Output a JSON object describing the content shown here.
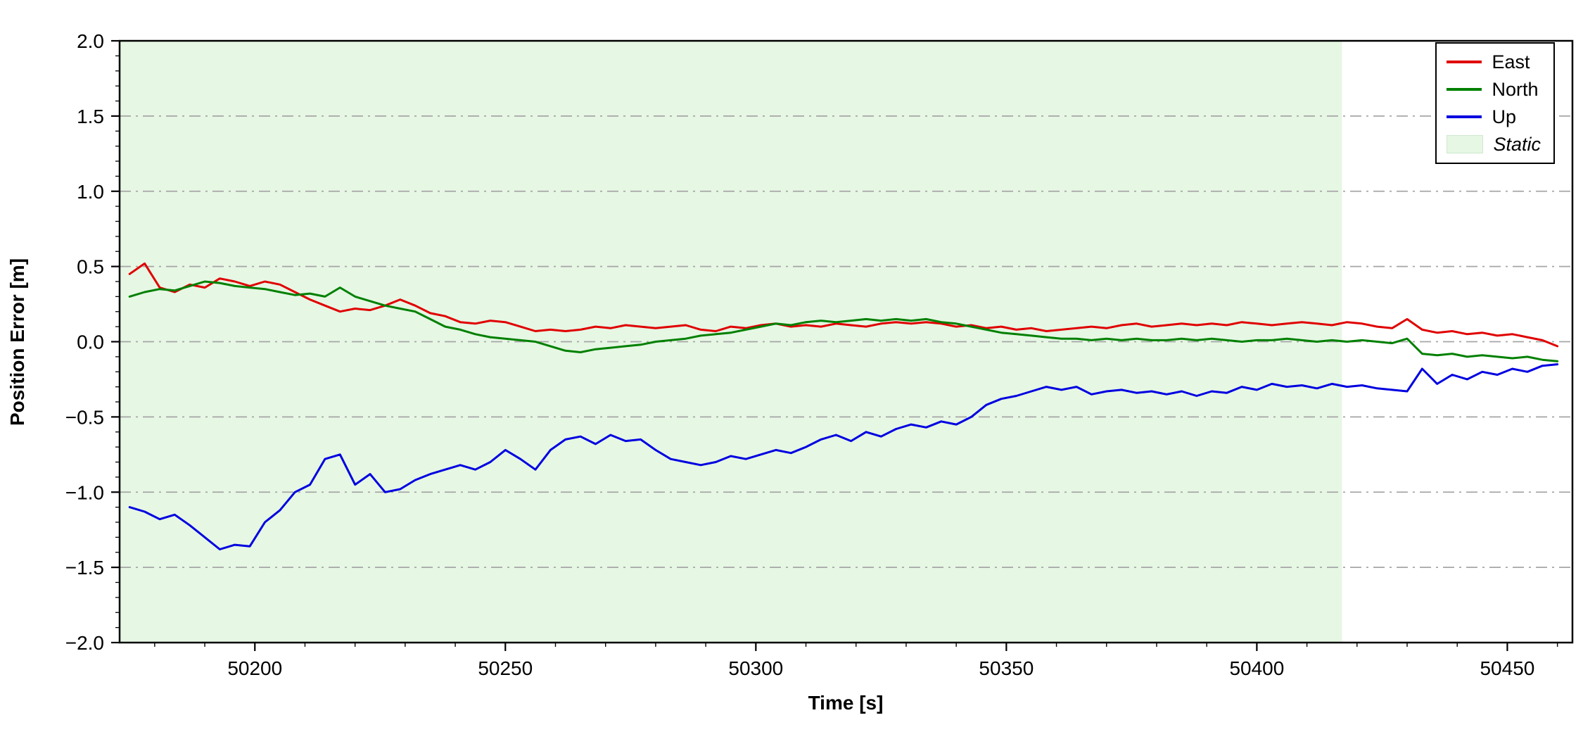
{
  "figure": {
    "title": ""
  },
  "chart_data": {
    "type": "line",
    "title": "",
    "xlabel": "Time [s]",
    "ylabel": "Position Error [m]",
    "xlim": [
      50173,
      50463
    ],
    "ylim": [
      -2.0,
      2.0
    ],
    "xticks": [
      50200,
      50250,
      50300,
      50350,
      50400,
      50450
    ],
    "yticks": [
      -2.0,
      -1.5,
      -1.0,
      -0.5,
      0.0,
      0.5,
      1.0,
      1.5,
      2.0
    ],
    "ytick_labels": [
      "−2.0",
      "−1.5",
      "−1.0",
      "−0.5",
      "0.0",
      "0.5",
      "1.0",
      "1.5",
      "2.0"
    ],
    "grid": {
      "axis": "y",
      "style": "dashdot",
      "color": "#a6a6a6"
    },
    "legend_position": "upper right",
    "static_region": {
      "label": "Static",
      "x_start": 50173,
      "x_end": 50417,
      "color": "#e6f7e4"
    },
    "x": [
      50175,
      50178,
      50181,
      50184,
      50187,
      50190,
      50193,
      50196,
      50199,
      50202,
      50205,
      50208,
      50211,
      50214,
      50217,
      50220,
      50223,
      50226,
      50229,
      50232,
      50235,
      50238,
      50241,
      50244,
      50247,
      50250,
      50253,
      50256,
      50259,
      50262,
      50265,
      50268,
      50271,
      50274,
      50277,
      50280,
      50283,
      50286,
      50289,
      50292,
      50295,
      50298,
      50301,
      50304,
      50307,
      50310,
      50313,
      50316,
      50319,
      50322,
      50325,
      50328,
      50331,
      50334,
      50337,
      50340,
      50343,
      50346,
      50349,
      50352,
      50355,
      50358,
      50361,
      50364,
      50367,
      50370,
      50373,
      50376,
      50379,
      50382,
      50385,
      50388,
      50391,
      50394,
      50397,
      50400,
      50403,
      50406,
      50409,
      50412,
      50415,
      50418,
      50421,
      50424,
      50427,
      50430,
      50433,
      50436,
      50439,
      50442,
      50445,
      50448,
      50451,
      50454,
      50457,
      50460
    ],
    "series": [
      {
        "name": "East",
        "color": "#e00000",
        "values": [
          0.45,
          0.52,
          0.36,
          0.33,
          0.38,
          0.36,
          0.42,
          0.4,
          0.37,
          0.4,
          0.38,
          0.33,
          0.28,
          0.24,
          0.2,
          0.22,
          0.21,
          0.24,
          0.28,
          0.24,
          0.19,
          0.17,
          0.13,
          0.12,
          0.14,
          0.13,
          0.1,
          0.07,
          0.08,
          0.07,
          0.08,
          0.1,
          0.09,
          0.11,
          0.1,
          0.09,
          0.1,
          0.11,
          0.08,
          0.07,
          0.1,
          0.09,
          0.11,
          0.12,
          0.1,
          0.11,
          0.1,
          0.12,
          0.11,
          0.1,
          0.12,
          0.13,
          0.12,
          0.13,
          0.12,
          0.1,
          0.11,
          0.09,
          0.1,
          0.08,
          0.09,
          0.07,
          0.08,
          0.09,
          0.1,
          0.09,
          0.11,
          0.12,
          0.1,
          0.11,
          0.12,
          0.11,
          0.12,
          0.11,
          0.13,
          0.12,
          0.11,
          0.12,
          0.13,
          0.12,
          0.11,
          0.13,
          0.12,
          0.1,
          0.09,
          0.15,
          0.08,
          0.06,
          0.07,
          0.05,
          0.06,
          0.04,
          0.05,
          0.03,
          0.01,
          -0.03
        ]
      },
      {
        "name": "North",
        "color": "#008000",
        "values": [
          0.3,
          0.33,
          0.35,
          0.34,
          0.37,
          0.4,
          0.39,
          0.37,
          0.36,
          0.35,
          0.33,
          0.31,
          0.32,
          0.3,
          0.36,
          0.3,
          0.27,
          0.24,
          0.22,
          0.2,
          0.15,
          0.1,
          0.08,
          0.05,
          0.03,
          0.02,
          0.01,
          0.0,
          -0.03,
          -0.06,
          -0.07,
          -0.05,
          -0.04,
          -0.03,
          -0.02,
          0.0,
          0.01,
          0.02,
          0.04,
          0.05,
          0.06,
          0.08,
          0.1,
          0.12,
          0.11,
          0.13,
          0.14,
          0.13,
          0.14,
          0.15,
          0.14,
          0.15,
          0.14,
          0.15,
          0.13,
          0.12,
          0.1,
          0.08,
          0.06,
          0.05,
          0.04,
          0.03,
          0.02,
          0.02,
          0.01,
          0.02,
          0.01,
          0.02,
          0.01,
          0.01,
          0.02,
          0.01,
          0.02,
          0.01,
          0.0,
          0.01,
          0.01,
          0.02,
          0.01,
          0.0,
          0.01,
          0.0,
          0.01,
          0.0,
          -0.01,
          0.02,
          -0.08,
          -0.09,
          -0.08,
          -0.1,
          -0.09,
          -0.1,
          -0.11,
          -0.1,
          -0.12,
          -0.13
        ]
      },
      {
        "name": "Up",
        "color": "#0000e0",
        "values": [
          -1.1,
          -1.13,
          -1.18,
          -1.15,
          -1.22,
          -1.3,
          -1.38,
          -1.35,
          -1.36,
          -1.2,
          -1.12,
          -1.0,
          -0.95,
          -0.78,
          -0.75,
          -0.95,
          -0.88,
          -1.0,
          -0.98,
          -0.92,
          -0.88,
          -0.85,
          -0.82,
          -0.85,
          -0.8,
          -0.72,
          -0.78,
          -0.85,
          -0.72,
          -0.65,
          -0.63,
          -0.68,
          -0.62,
          -0.66,
          -0.65,
          -0.72,
          -0.78,
          -0.8,
          -0.82,
          -0.8,
          -0.76,
          -0.78,
          -0.75,
          -0.72,
          -0.74,
          -0.7,
          -0.65,
          -0.62,
          -0.66,
          -0.6,
          -0.63,
          -0.58,
          -0.55,
          -0.57,
          -0.53,
          -0.55,
          -0.5,
          -0.42,
          -0.38,
          -0.36,
          -0.33,
          -0.3,
          -0.32,
          -0.3,
          -0.35,
          -0.33,
          -0.32,
          -0.34,
          -0.33,
          -0.35,
          -0.33,
          -0.36,
          -0.33,
          -0.34,
          -0.3,
          -0.32,
          -0.28,
          -0.3,
          -0.29,
          -0.31,
          -0.28,
          -0.3,
          -0.29,
          -0.31,
          -0.32,
          -0.33,
          -0.18,
          -0.28,
          -0.22,
          -0.25,
          -0.2,
          -0.22,
          -0.18,
          -0.2,
          -0.16,
          -0.15
        ]
      }
    ]
  }
}
